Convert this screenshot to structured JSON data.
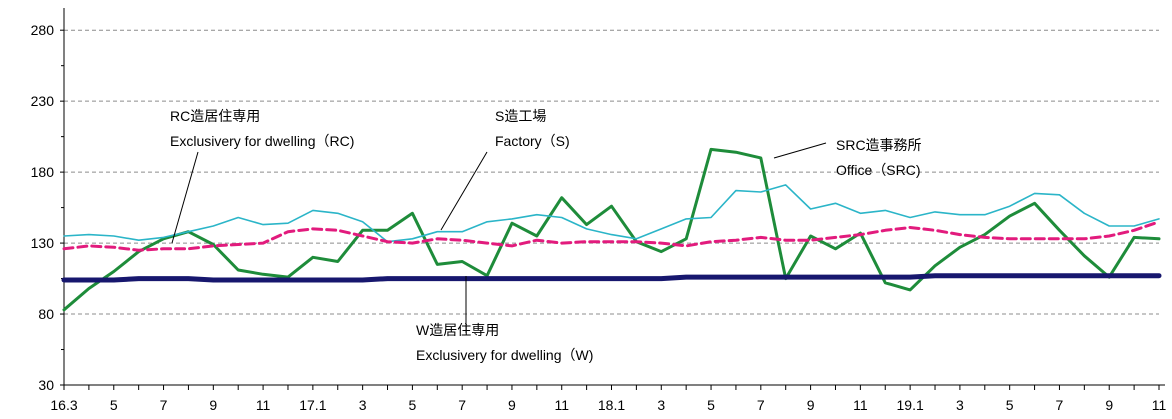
{
  "chart_data": {
    "type": "line",
    "title": "",
    "xlabel": "",
    "ylabel": "",
    "ylim": [
      30,
      290
    ],
    "yticks": [
      "280",
      "230",
      "180",
      "130",
      "80",
      "30"
    ],
    "ytick_values": [
      280,
      230,
      180,
      130,
      80,
      30
    ],
    "xtick_labels": [
      "16.3",
      "5",
      "7",
      "9",
      "11",
      "17.1",
      "3",
      "5",
      "7",
      "9",
      "11",
      "18.1",
      "3",
      "5",
      "7",
      "9",
      "11",
      "19.1",
      "3",
      "5",
      "7",
      "9",
      "11"
    ],
    "x": [
      "2016-03",
      "2016-04",
      "2016-05",
      "2016-06",
      "2016-07",
      "2016-08",
      "2016-09",
      "2016-10",
      "2016-11",
      "2016-12",
      "2017-01",
      "2017-02",
      "2017-03",
      "2017-04",
      "2017-05",
      "2017-06",
      "2017-07",
      "2017-08",
      "2017-09",
      "2017-10",
      "2017-11",
      "2017-12",
      "2018-01",
      "2018-02",
      "2018-03",
      "2018-04",
      "2018-05",
      "2018-06",
      "2018-07",
      "2018-08",
      "2018-09",
      "2018-10",
      "2018-11",
      "2018-12",
      "2019-01",
      "2019-02",
      "2019-03",
      "2019-04",
      "2019-05",
      "2019-06",
      "2019-07",
      "2019-08",
      "2019-09",
      "2019-10",
      "2019-11"
    ],
    "grid": true,
    "legend": "none",
    "series": [
      {
        "name": "SRC造事務所",
        "name_en": "Office（SRC)",
        "color": "#1e8c3a",
        "values": [
          83,
          98,
          110,
          124,
          133,
          138,
          129,
          111,
          108,
          106,
          120,
          117,
          139,
          139,
          151,
          115,
          117,
          107,
          144,
          135,
          162,
          143,
          156,
          131,
          124,
          133,
          196,
          194,
          190,
          105,
          135,
          126,
          137,
          102,
          97,
          114,
          127,
          136,
          149,
          158,
          139,
          121,
          106,
          134,
          133
        ]
      },
      {
        "name": "S造工場",
        "name_en": "Factory（S)",
        "color": "#2bb5c8",
        "values": [
          135,
          136,
          135,
          132,
          134,
          138,
          142,
          148,
          143,
          144,
          153,
          151,
          145,
          131,
          133,
          138,
          138,
          145,
          147,
          150,
          148,
          140,
          136,
          133,
          140,
          147,
          148,
          167,
          166,
          171,
          154,
          158,
          151,
          153,
          148,
          152,
          150,
          150,
          156,
          165,
          164,
          151,
          142,
          142,
          147
        ]
      },
      {
        "name": "RC造居住専用",
        "name_en": "Exclusivery for dwelling（RC)",
        "color": "#e21b7d",
        "values": [
          126,
          128,
          127,
          125,
          126,
          126,
          128,
          129,
          130,
          138,
          140,
          139,
          135,
          131,
          130,
          133,
          132,
          130,
          128,
          132,
          130,
          131,
          131,
          131,
          130,
          128,
          131,
          132,
          134,
          132,
          132,
          134,
          136,
          139,
          141,
          139,
          136,
          134,
          133,
          133,
          133,
          133,
          135,
          139,
          145
        ]
      },
      {
        "name": "W造居住専用",
        "name_en": "Exclusivery for dwelling（W)",
        "color": "#17176e",
        "values": [
          104,
          104,
          104,
          105,
          105,
          105,
          104,
          104,
          104,
          104,
          104,
          104,
          104,
          105,
          105,
          105,
          105,
          105,
          105,
          105,
          105,
          105,
          105,
          105,
          105,
          106,
          106,
          106,
          106,
          106,
          106,
          106,
          106,
          106,
          106,
          107,
          107,
          107,
          107,
          107,
          107,
          107,
          107,
          107,
          107
        ]
      }
    ],
    "annotations": [
      {
        "line1": "RC造居住専用",
        "line2": "Exclusivery for dwelling（RC)"
      },
      {
        "line1": "S造工場",
        "line2": "Factory（S)"
      },
      {
        "line1": "SRC造事務所",
        "line2": "Office（SRC)"
      },
      {
        "line1": "W造居住専用",
        "line2": "Exclusivery for dwelling（W)"
      }
    ]
  }
}
